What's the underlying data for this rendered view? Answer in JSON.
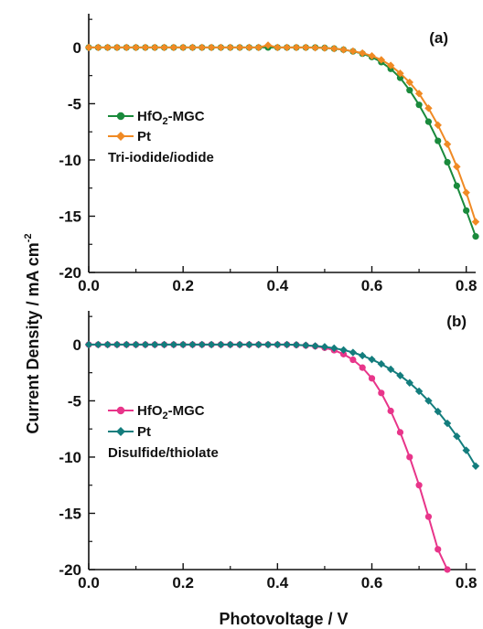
{
  "figure": {
    "ylabel": "Current Density / mA cm",
    "ylabel_sup": "-2",
    "xlabel": "Photovoltage / V"
  },
  "chart_data": [
    {
      "type": "line",
      "panel_label": "(a)",
      "annotation": "Tri-iodide/iodide",
      "xlim": [
        0.0,
        0.82
      ],
      "ylim": [
        -20,
        3
      ],
      "x_ticks": [
        "0.0",
        "0.2",
        "0.4",
        "0.6",
        "0.8"
      ],
      "y_ticks": [
        "0",
        "-5",
        "-10",
        "-15",
        "-20"
      ],
      "legend_position": "middle-left",
      "series": [
        {
          "name_main": "HfO",
          "name_sub": "2",
          "name_tail": "-MGC",
          "color": "#1a8a3c",
          "marker": "circle",
          "x": [
            0.0,
            0.02,
            0.04,
            0.06,
            0.08,
            0.1,
            0.12,
            0.14,
            0.16,
            0.18,
            0.2,
            0.22,
            0.24,
            0.26,
            0.28,
            0.3,
            0.32,
            0.34,
            0.36,
            0.38,
            0.4,
            0.42,
            0.44,
            0.46,
            0.48,
            0.5,
            0.52,
            0.54,
            0.56,
            0.58,
            0.6,
            0.62,
            0.64,
            0.66,
            0.68,
            0.7,
            0.72,
            0.74,
            0.76,
            0.78,
            0.8,
            0.82
          ],
          "y": [
            0.0,
            0.0,
            0.0,
            0.0,
            0.0,
            0.0,
            0.0,
            0.0,
            0.0,
            0.0,
            0.0,
            0.0,
            0.0,
            0.0,
            0.0,
            0.0,
            0.0,
            0.0,
            0.0,
            0.0,
            0.0,
            0.0,
            0.0,
            0.0,
            0.0,
            -0.04,
            -0.1,
            -0.2,
            -0.35,
            -0.55,
            -0.85,
            -1.3,
            -1.9,
            -2.7,
            -3.8,
            -5.1,
            -6.6,
            -8.3,
            -10.2,
            -12.3,
            -14.5,
            -16.8
          ]
        },
        {
          "name": "Pt",
          "color": "#f08a24",
          "marker": "diamond",
          "x": [
            0.0,
            0.02,
            0.04,
            0.06,
            0.08,
            0.1,
            0.12,
            0.14,
            0.16,
            0.18,
            0.2,
            0.22,
            0.24,
            0.26,
            0.28,
            0.3,
            0.32,
            0.34,
            0.36,
            0.38,
            0.4,
            0.42,
            0.44,
            0.46,
            0.48,
            0.5,
            0.52,
            0.54,
            0.56,
            0.58,
            0.6,
            0.62,
            0.64,
            0.66,
            0.68,
            0.7,
            0.72,
            0.74,
            0.76,
            0.78,
            0.8,
            0.82
          ],
          "y": [
            0.0,
            0.0,
            0.0,
            0.0,
            0.0,
            0.0,
            0.0,
            0.0,
            0.0,
            0.0,
            0.0,
            0.0,
            0.0,
            0.0,
            0.0,
            0.0,
            0.0,
            0.0,
            0.0,
            0.2,
            0.0,
            0.0,
            0.0,
            0.0,
            -0.02,
            -0.05,
            -0.1,
            -0.2,
            -0.33,
            -0.5,
            -0.75,
            -1.1,
            -1.6,
            -2.3,
            -3.1,
            -4.1,
            -5.4,
            -6.9,
            -8.6,
            -10.6,
            -12.9,
            -15.5
          ]
        }
      ]
    },
    {
      "type": "line",
      "panel_label": "(b)",
      "annotation": "Disulfide/thiolate",
      "xlim": [
        0.0,
        0.82
      ],
      "ylim": [
        -20,
        3
      ],
      "x_ticks": [
        "0.0",
        "0.2",
        "0.4",
        "0.6",
        "0.8"
      ],
      "y_ticks": [
        "0",
        "-5",
        "-10",
        "-15",
        "-20"
      ],
      "legend_position": "middle-left",
      "series": [
        {
          "name_main": "HfO",
          "name_sub": "2",
          "name_tail": "-MGC",
          "color": "#e8358a",
          "marker": "circle",
          "x": [
            0.0,
            0.02,
            0.04,
            0.06,
            0.08,
            0.1,
            0.12,
            0.14,
            0.16,
            0.18,
            0.2,
            0.22,
            0.24,
            0.26,
            0.28,
            0.3,
            0.32,
            0.34,
            0.36,
            0.38,
            0.4,
            0.42,
            0.44,
            0.46,
            0.48,
            0.5,
            0.52,
            0.54,
            0.56,
            0.58,
            0.6,
            0.62,
            0.64,
            0.66,
            0.68,
            0.7,
            0.72,
            0.74,
            0.76
          ],
          "y": [
            0.0,
            0.0,
            0.0,
            0.0,
            0.0,
            0.0,
            0.0,
            0.0,
            0.0,
            0.0,
            0.0,
            0.0,
            0.0,
            0.0,
            0.0,
            0.0,
            0.0,
            0.0,
            0.0,
            0.0,
            0.0,
            0.0,
            -0.03,
            -0.08,
            -0.15,
            -0.28,
            -0.5,
            -0.85,
            -1.35,
            -2.05,
            -3.0,
            -4.3,
            -5.9,
            -7.8,
            -10.0,
            -12.5,
            -15.3,
            -18.2,
            -20.0
          ]
        },
        {
          "name": "Pt",
          "color": "#137d7d",
          "marker": "diamond",
          "x": [
            0.0,
            0.02,
            0.04,
            0.06,
            0.08,
            0.1,
            0.12,
            0.14,
            0.16,
            0.18,
            0.2,
            0.22,
            0.24,
            0.26,
            0.28,
            0.3,
            0.32,
            0.34,
            0.36,
            0.38,
            0.4,
            0.42,
            0.44,
            0.46,
            0.48,
            0.5,
            0.52,
            0.54,
            0.56,
            0.58,
            0.6,
            0.62,
            0.64,
            0.66,
            0.68,
            0.7,
            0.72,
            0.74,
            0.76,
            0.78,
            0.8,
            0.82
          ],
          "y": [
            0.0,
            0.0,
            0.0,
            0.0,
            0.0,
            0.0,
            0.0,
            0.0,
            0.0,
            0.0,
            0.0,
            0.0,
            0.0,
            0.0,
            0.0,
            0.0,
            0.0,
            0.0,
            0.0,
            0.0,
            0.0,
            0.0,
            -0.02,
            -0.06,
            -0.12,
            -0.2,
            -0.32,
            -0.48,
            -0.7,
            -0.98,
            -1.32,
            -1.72,
            -2.2,
            -2.75,
            -3.4,
            -4.15,
            -5.0,
            -5.95,
            -7.0,
            -8.15,
            -9.4,
            -10.8
          ]
        }
      ]
    }
  ]
}
